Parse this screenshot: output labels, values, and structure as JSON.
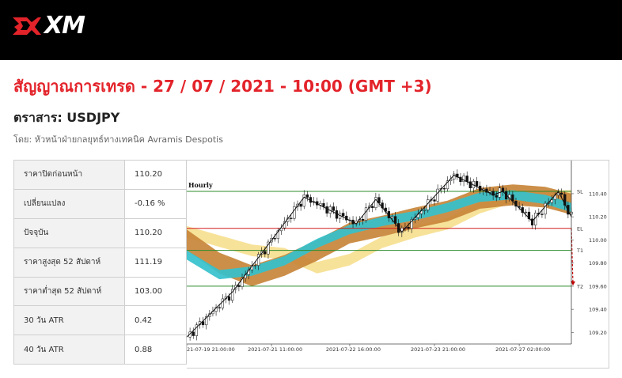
{
  "brand": {
    "logo_text": "XM",
    "logo_mark_color": "#e3232a"
  },
  "headline": "สัญญาณการเทรด - 27 / 07 / 2021 - 10:00 (GMT +3)",
  "instrument": "ตราสาร: USDJPY",
  "byline": "โดย: หัวหน้าฝ่ายกลยุทธ์ทางเทคนิค Avramis Despotis",
  "stats": [
    {
      "label": "ราคาปิดก่อนหน้า",
      "value": "110.20"
    },
    {
      "label": "เปลี่ยนแปลง",
      "value": "-0.16 %"
    },
    {
      "label": "ปัจจุบัน",
      "value": "110.20"
    },
    {
      "label": "ราคาสูงสุด 52 สัปดาห์",
      "value": "111.19"
    },
    {
      "label": "ราคาต่ำสุด 52 สัปดาห์",
      "value": "103.00"
    },
    {
      "label": "30 วัน ATR",
      "value": "0.42"
    },
    {
      "label": "40 วัน ATR",
      "value": "0.88"
    }
  ],
  "chart_data": {
    "type": "line",
    "timeframe_label": "Hourly",
    "x_tick_labels": [
      "21-07-19 21:00:00",
      "2021-07-21 11:00:00",
      "2021-07-22 16:00:00",
      "2021-07-23 21:00:00",
      "2021-07-27 02:00:00"
    ],
    "y_tick_labels": [
      "110.40",
      "110.20",
      "110.00",
      "109.80",
      "109.60",
      "109.40",
      "109.20"
    ],
    "y_ticks": [
      110.4,
      110.2,
      110.0,
      109.8,
      109.6,
      109.4,
      109.2
    ],
    "ylim": [
      109.1,
      110.55
    ],
    "levels": [
      {
        "name": "SL",
        "value": 110.42,
        "color": "#2e8b2e"
      },
      {
        "name": "EL",
        "value": 110.1,
        "color": "#d11a1a"
      },
      {
        "name": "T1",
        "value": 109.91,
        "color": "#2e8b2e"
      },
      {
        "name": "T2",
        "value": 109.6,
        "color": "#2e8b2e"
      }
    ],
    "zigzag": [
      [
        0,
        109.16
      ],
      [
        14,
        109.55
      ],
      [
        36,
        110.37
      ],
      [
        52,
        110.14
      ],
      [
        58,
        110.35
      ],
      [
        66,
        110.07
      ],
      [
        82,
        110.56
      ],
      [
        94,
        110.39
      ],
      [
        97,
        110.42
      ],
      [
        106,
        110.16
      ],
      [
        114,
        110.42
      ],
      [
        118,
        110.2
      ]
    ],
    "series": [
      {
        "name": "",
        "color": "#f6df8e",
        "x": [
          0,
          10,
          20,
          30,
          40,
          50,
          60,
          70,
          80,
          90,
          100,
          110,
          118
        ],
        "values": [
          110.07,
          109.99,
          109.91,
          109.88,
          109.76,
          109.83,
          109.98,
          110.07,
          110.14,
          110.28,
          110.37,
          110.38,
          110.38
        ]
      },
      {
        "name": "",
        "color": "#c8863a",
        "x": [
          0,
          10,
          20,
          30,
          40,
          50,
          60,
          70,
          80,
          90,
          100,
          110,
          118
        ],
        "values": [
          110.0,
          109.8,
          109.69,
          109.78,
          109.91,
          110.06,
          110.12,
          110.19,
          110.25,
          110.36,
          110.39,
          110.37,
          110.31
        ]
      },
      {
        "name": "",
        "color": "#35c1cc",
        "x": [
          0,
          10,
          20,
          30,
          40,
          50,
          60,
          70,
          80,
          90,
          100,
          110,
          118
        ],
        "values": [
          109.87,
          109.7,
          109.73,
          109.82,
          109.97,
          110.09,
          110.16,
          110.21,
          110.28,
          110.37,
          110.39,
          110.35,
          110.28
        ]
      }
    ],
    "band_widths": [
      0.05,
      0.09,
      0.04
    ],
    "projection": {
      "from": [
        118,
        110.1
      ],
      "to": [
        124,
        109.62
      ],
      "color": "#c00000"
    }
  }
}
